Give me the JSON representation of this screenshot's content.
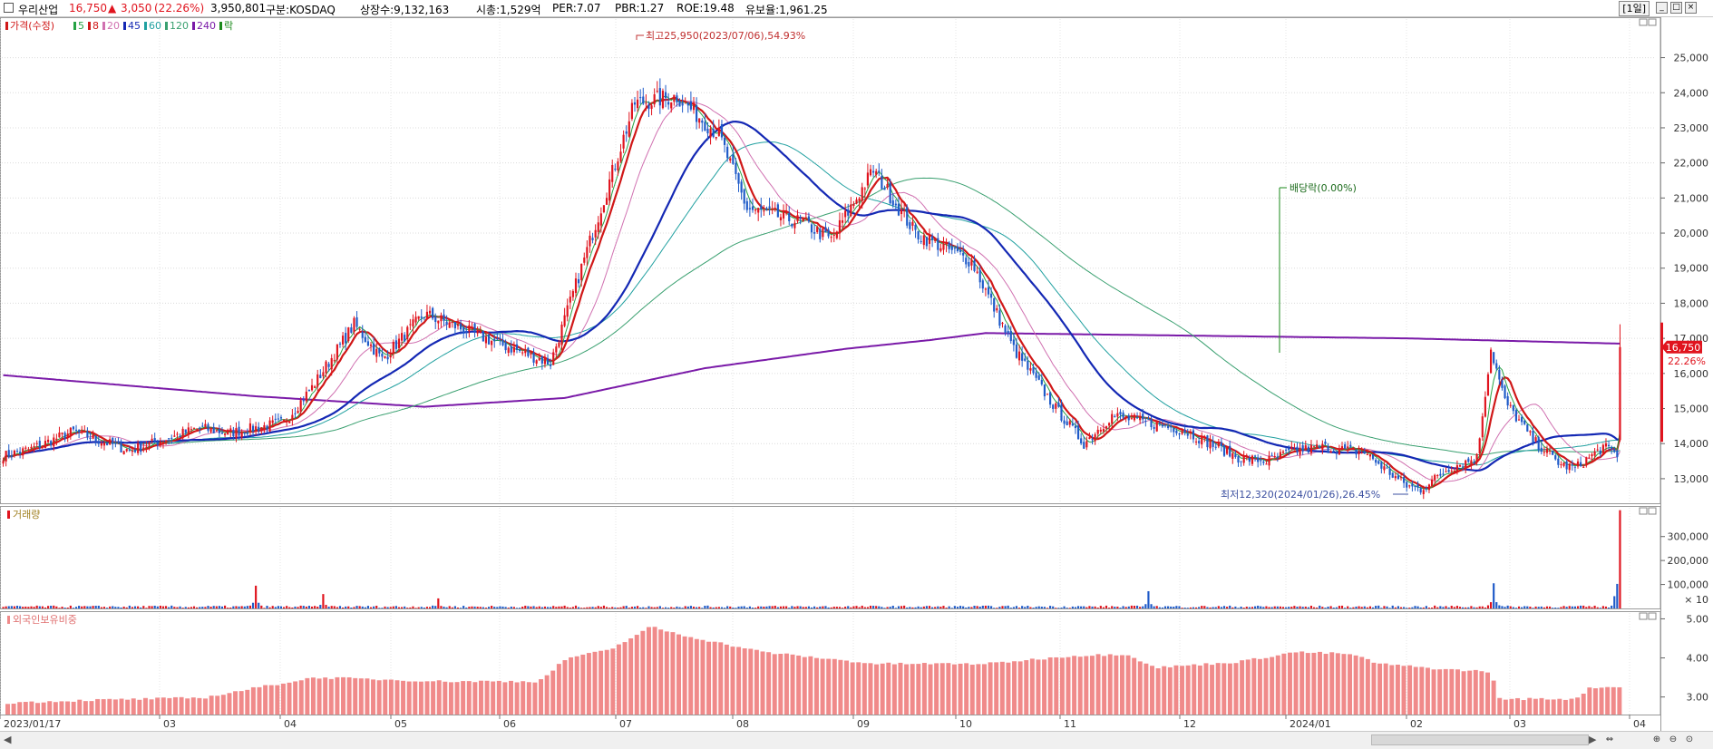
{
  "header": {
    "name": "우리산업",
    "price": "16,750",
    "change_arrow": "▲",
    "change": "3,050",
    "change_pct": "(22.26%)",
    "volume": "3,950,801",
    "market": "구분:KOSDAQ",
    "shares": "상장수:9,132,163",
    "mcap": "시총:1,529억",
    "per": "PER:7.07",
    "pbr": "PBR:1.27",
    "roe": "ROE:19.48",
    "retention": "유보율:1,961.25",
    "period": "[1일]"
  },
  "colors": {
    "up": "#e0141e",
    "down": "#1e5ac8",
    "ma5": "#25a244",
    "ma8": "#d01818",
    "ma20": "#d070b0",
    "ma45": "#1428b4",
    "ma60": "#20a0a0",
    "ma120": "#3aa070",
    "ma240": "#7a1aa8",
    "foreign": "#f08a8a",
    "volume_label": "#a08020",
    "foreign_label": "#e07070"
  },
  "price_legend": [
    {
      "text": "가격(수정)",
      "color": "#d01818"
    },
    {
      "text": "5",
      "color": "#25a244"
    },
    {
      "text": "8",
      "color": "#d01818"
    },
    {
      "text": "20",
      "color": "#d070b0"
    },
    {
      "text": "45",
      "color": "#1428b4"
    },
    {
      "text": "60",
      "color": "#20a0a0"
    },
    {
      "text": "120",
      "color": "#3aa070"
    },
    {
      "text": "240",
      "color": "#7a1aa8"
    },
    {
      "text": "락",
      "color": "#1a8a1a"
    }
  ],
  "chart_data": [
    {
      "type": "candlestick",
      "x_ticks": [
        "2023/01/17",
        "03",
        "04",
        "05",
        "06",
        "07",
        "08",
        "09",
        "10",
        "11",
        "12",
        "2024/01",
        "02",
        "03",
        "04"
      ],
      "y_ticks": [
        "25,000",
        "24,000",
        "23,000",
        "22,000",
        "21,000",
        "20,000",
        "19,000",
        "18,000",
        "17,000",
        "16,000",
        "15,000",
        "14,000",
        "13,000"
      ],
      "ylim": [
        12300,
        26100
      ],
      "last_price_tag": "16,750",
      "last_pct_tag": "22.26%",
      "annotations": [
        {
          "text": "최고25,950(2023/07/06),54.93%",
          "value": 25950
        },
        {
          "text": "최저12,320(2024/01/26),26.45%",
          "value": 12320
        },
        {
          "text": "배당락(0.00%)"
        }
      ],
      "anchors": [
        [
          0,
          13650
        ],
        [
          10,
          13850
        ],
        [
          25,
          14350
        ],
        [
          45,
          13800
        ],
        [
          70,
          14450
        ],
        [
          80,
          14300
        ],
        [
          100,
          14600
        ],
        [
          110,
          15600
        ],
        [
          125,
          17400
        ],
        [
          135,
          16400
        ],
        [
          150,
          17700
        ],
        [
          175,
          16900
        ],
        [
          185,
          16600
        ],
        [
          195,
          16300
        ],
        [
          210,
          20000
        ],
        [
          225,
          23700
        ],
        [
          240,
          23900
        ],
        [
          255,
          22800
        ],
        [
          265,
          20700
        ],
        [
          285,
          20300
        ],
        [
          295,
          19800
        ],
        [
          310,
          21800
        ],
        [
          325,
          20000
        ],
        [
          345,
          19200
        ],
        [
          360,
          16700
        ],
        [
          375,
          15000
        ],
        [
          385,
          14000
        ],
        [
          395,
          14800
        ],
        [
          420,
          14400
        ],
        [
          440,
          13600
        ],
        [
          450,
          13500
        ],
        [
          460,
          13800
        ],
        [
          470,
          13900
        ],
        [
          485,
          13750
        ],
        [
          495,
          13100
        ],
        [
          500,
          12800
        ],
        [
          505,
          12700
        ],
        [
          515,
          13300
        ],
        [
          525,
          13600
        ],
        [
          530,
          16700
        ],
        [
          535,
          15200
        ],
        [
          545,
          14100
        ],
        [
          555,
          13400
        ],
        [
          560,
          13300
        ],
        [
          570,
          13900
        ],
        [
          575,
          13700
        ],
        [
          576,
          16750
        ]
      ],
      "ma240_anchors": [
        [
          0,
          15950
        ],
        [
          90,
          15350
        ],
        [
          150,
          15050
        ],
        [
          200,
          15300
        ],
        [
          250,
          16150
        ],
        [
          300,
          16700
        ],
        [
          330,
          16950
        ],
        [
          350,
          17150
        ],
        [
          400,
          17100
        ],
        [
          500,
          17000
        ],
        [
          576,
          16850
        ]
      ],
      "last_candle": {
        "open": 14100,
        "high": 17400,
        "low": 14050,
        "close": 16750
      }
    },
    {
      "type": "bar",
      "series": "거래량",
      "y_ticks": [
        "300,000",
        "200,000",
        "100,000"
      ],
      "unit_label": "× 10",
      "ylim": [
        0,
        420000
      ],
      "spikes": [
        [
          90,
          95000
        ],
        [
          114,
          60000
        ],
        [
          155,
          42000
        ],
        [
          408,
          72000
        ],
        [
          531,
          105000
        ],
        [
          576,
          410000
        ]
      ],
      "base_volume": 6000
    },
    {
      "type": "bar",
      "series": "외국인보유비중",
      "y_ticks": [
        "5.00",
        "4.00",
        "3.00"
      ],
      "ylim": [
        2.55,
        5.15
      ],
      "anchors": [
        [
          0,
          2.85
        ],
        [
          30,
          2.92
        ],
        [
          70,
          2.98
        ],
        [
          90,
          3.25
        ],
        [
          110,
          3.5
        ],
        [
          155,
          3.4
        ],
        [
          190,
          3.4
        ],
        [
          200,
          4.0
        ],
        [
          215,
          4.2
        ],
        [
          230,
          4.8
        ],
        [
          240,
          4.6
        ],
        [
          270,
          4.15
        ],
        [
          310,
          3.85
        ],
        [
          350,
          3.85
        ],
        [
          380,
          4.05
        ],
        [
          400,
          4.1
        ],
        [
          410,
          3.75
        ],
        [
          440,
          3.9
        ],
        [
          460,
          4.15
        ],
        [
          480,
          4.1
        ],
        [
          490,
          3.85
        ],
        [
          515,
          3.7
        ],
        [
          530,
          3.65
        ],
        [
          533,
          2.95
        ],
        [
          560,
          2.95
        ],
        [
          566,
          3.25
        ],
        [
          576,
          3.25
        ]
      ]
    }
  ]
}
